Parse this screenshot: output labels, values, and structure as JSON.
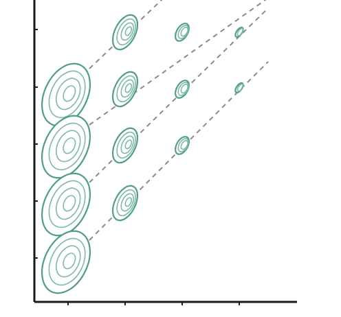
{
  "figure": {
    "description_hidden": "",
    "colors": {
      "contour": "#4f9e84",
      "contour_inner": "#7bbaa3",
      "axis": "#1a1a1a",
      "dash": "#8a8a8a",
      "background": "#ffffff"
    },
    "grid": {
      "rows": 4,
      "columns": 4,
      "cells": [
        {
          "row": 1,
          "col": 1,
          "contours": 4
        },
        {
          "row": 1,
          "col": 2,
          "contours": 4
        },
        {
          "row": 1,
          "col": 3,
          "contours": 3
        },
        {
          "row": 1,
          "col": 4,
          "contours": 2
        },
        {
          "row": 2,
          "col": 1,
          "contours": 4
        },
        {
          "row": 2,
          "col": 2,
          "contours": 4
        },
        {
          "row": 2,
          "col": 3,
          "contours": 3
        },
        {
          "row": 2,
          "col": 4,
          "contours": 2
        },
        {
          "row": 3,
          "col": 1,
          "contours": 4
        },
        {
          "row": 3,
          "col": 2,
          "contours": 4
        },
        {
          "row": 3,
          "col": 3,
          "contours": 3
        },
        {
          "row": 4,
          "col": 1,
          "contours": 4
        },
        {
          "row": 4,
          "col": 2,
          "contours": 4
        }
      ]
    },
    "x_ticks": 5,
    "y_ticks": 6,
    "diagonal_guides": 4,
    "line_style": "dashed"
  }
}
